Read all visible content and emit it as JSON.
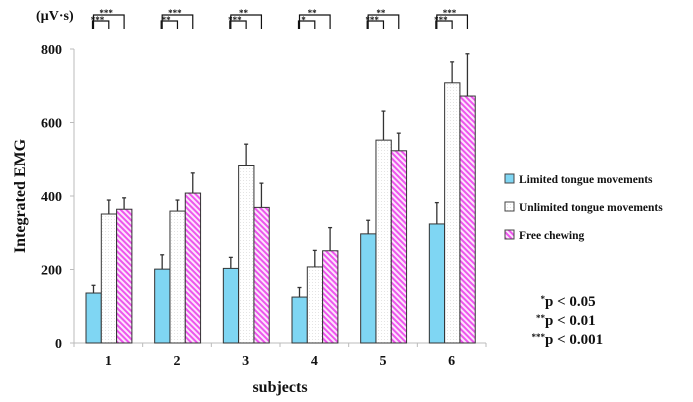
{
  "chart_data": {
    "type": "bar",
    "title": "",
    "xlabel": "subjects",
    "ylabel": "Integrated EMG",
    "yunit": "(µV·s)",
    "ylim": [
      0,
      800
    ],
    "yticks": [
      "0",
      "200",
      "400",
      "600",
      "800"
    ],
    "grid": false,
    "categories": [
      "1",
      "2",
      "3",
      "4",
      "5",
      "6"
    ],
    "series": [
      {
        "name": "Limited tongue movements",
        "color": "#7fd6f3",
        "pattern": "solid",
        "values": [
          136,
          201,
          203,
          125,
          297,
          324
        ],
        "error": [
          21,
          39,
          30,
          26,
          37,
          58
        ]
      },
      {
        "name": "Unlimited tongue movements",
        "color": "#ffffff",
        "pattern": "dotted",
        "values": [
          351,
          359,
          483,
          207,
          552,
          708
        ],
        "error": [
          38,
          30,
          58,
          45,
          79,
          57
        ]
      },
      {
        "name": "Free chewing",
        "color": "#ee66ee",
        "pattern": "hatched",
        "values": [
          364,
          408,
          369,
          251,
          523,
          672
        ],
        "error": [
          31,
          55,
          66,
          63,
          48,
          115
        ]
      }
    ],
    "legend_position": "right",
    "significance": [
      {
        "upper": "***",
        "lower": "***"
      },
      {
        "upper": "***",
        "lower": "**"
      },
      {
        "upper": "**",
        "lower": "***"
      },
      {
        "upper": "**",
        "lower": "*"
      },
      {
        "upper": "**",
        "lower": "***"
      },
      {
        "upper": "***",
        "lower": "***"
      }
    ],
    "significance_key": [
      {
        "stars": "*",
        "text": "p < 0.05"
      },
      {
        "stars": "**",
        "text": "p < 0.01"
      },
      {
        "stars": "***",
        "text": "p < 0.001"
      }
    ]
  }
}
